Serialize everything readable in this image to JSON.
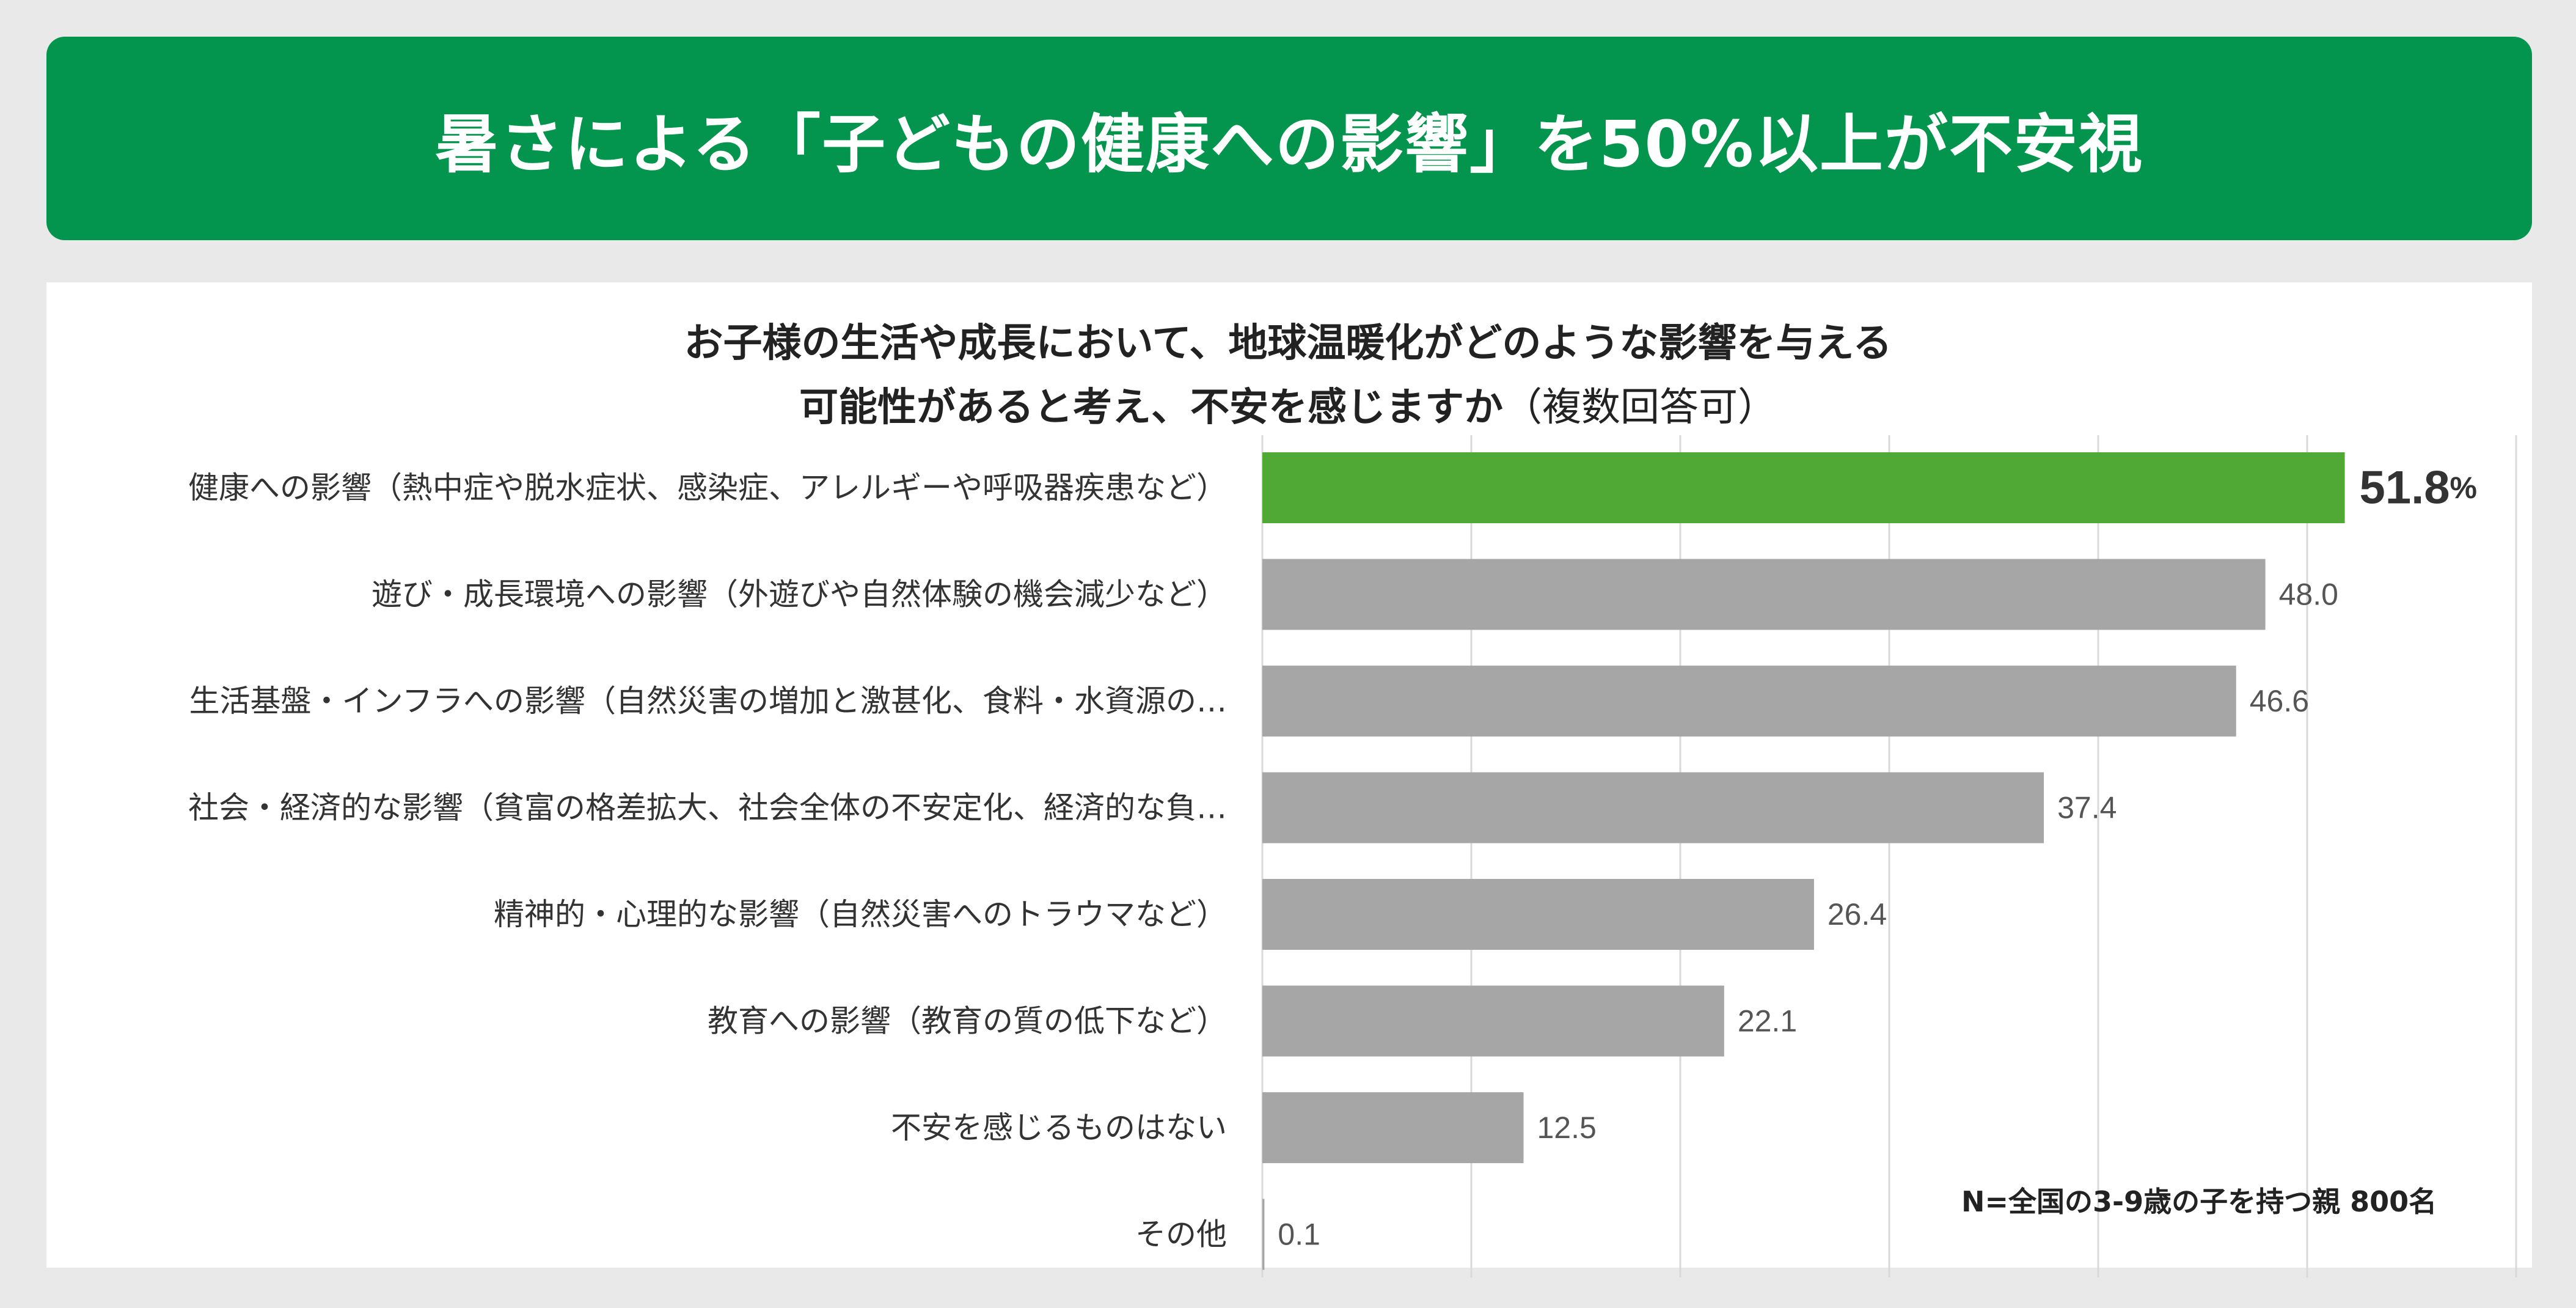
{
  "banner": {
    "title": "暑さによる「子どもの健康への影響」を50%以上が不安視"
  },
  "colors": {
    "banner": "#03944d",
    "highlight_bar": "#4fa934",
    "bar": "#a6a6a6",
    "gridline": "#d9d9d9"
  },
  "chart_data": {
    "type": "bar",
    "orientation": "horizontal",
    "title_line1": "お子様の生活や成長において、地球温暖化がどのような影響を与える",
    "title_line2": "可能性があると考え、不安を感じますか",
    "title_note": "（複数回答可）",
    "categories": [
      "健康への影響（熱中症や脱水症状、感染症、アレルギーや呼吸器疾患など）",
      "遊び・成長環境への影響（外遊びや自然体験の機会減少など）",
      "生活基盤・インフラへの影響（自然災害の増加と激甚化、食料・水資源の…",
      "社会・経済的な影響（貧富の格差拡大、社会全体の不安定化、経済的な負…",
      "精神的・心理的な影響（自然災害へのトラウマなど）",
      "教育への影響（教育の質の低下など）",
      "不安を感じるものはない",
      "その他"
    ],
    "values": [
      51.8,
      48.0,
      46.6,
      37.4,
      26.4,
      22.1,
      12.5,
      0.1
    ],
    "value_labels": [
      "51.8",
      "48.0",
      "46.6",
      "37.4",
      "26.4",
      "22.1",
      "12.5",
      "0.1"
    ],
    "highlight_unit": "%",
    "highlight_index": 0,
    "xlim": [
      0,
      60
    ],
    "grid": true
  },
  "footnote": "N=全国の3-9歳の子を持つ親 800名"
}
